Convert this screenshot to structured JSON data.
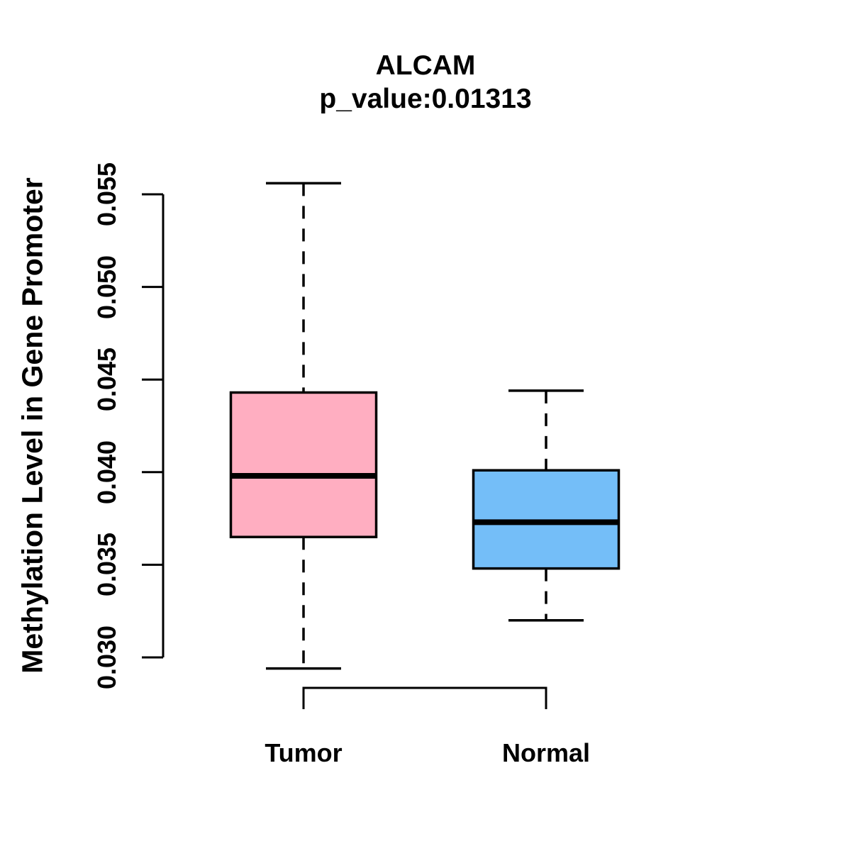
{
  "chart_data": {
    "type": "boxplot",
    "title": "ALCAM",
    "subtitle": "p_value:0.01313",
    "p_value": 0.01313,
    "gene": "ALCAM",
    "ylabel": "Methylation Level in Gene Promoter",
    "xlabel": "",
    "categories": [
      "Tumor",
      "Normal"
    ],
    "yticks": [
      "0.030",
      "0.035",
      "0.040",
      "0.045",
      "0.050",
      "0.055"
    ],
    "ylim": [
      0.03,
      0.055
    ],
    "grid": false,
    "legend": "none",
    "whisker_style": "dashed",
    "series": [
      {
        "name": "Tumor",
        "fill": "#FFAEC1",
        "whisker_low": 0.0294,
        "q1": 0.0365,
        "median": 0.0398,
        "q3": 0.0443,
        "whisker_high": 0.0556
      },
      {
        "name": "Normal",
        "fill": "#74BEF8",
        "whisker_low": 0.032,
        "q1": 0.0348,
        "median": 0.0373,
        "q3": 0.0401,
        "whisker_high": 0.0444
      }
    ],
    "colors": {
      "stroke": "#000000",
      "tumor_fill": "#FFAEC1",
      "normal_fill": "#74BEF8",
      "background": "#ffffff"
    }
  }
}
